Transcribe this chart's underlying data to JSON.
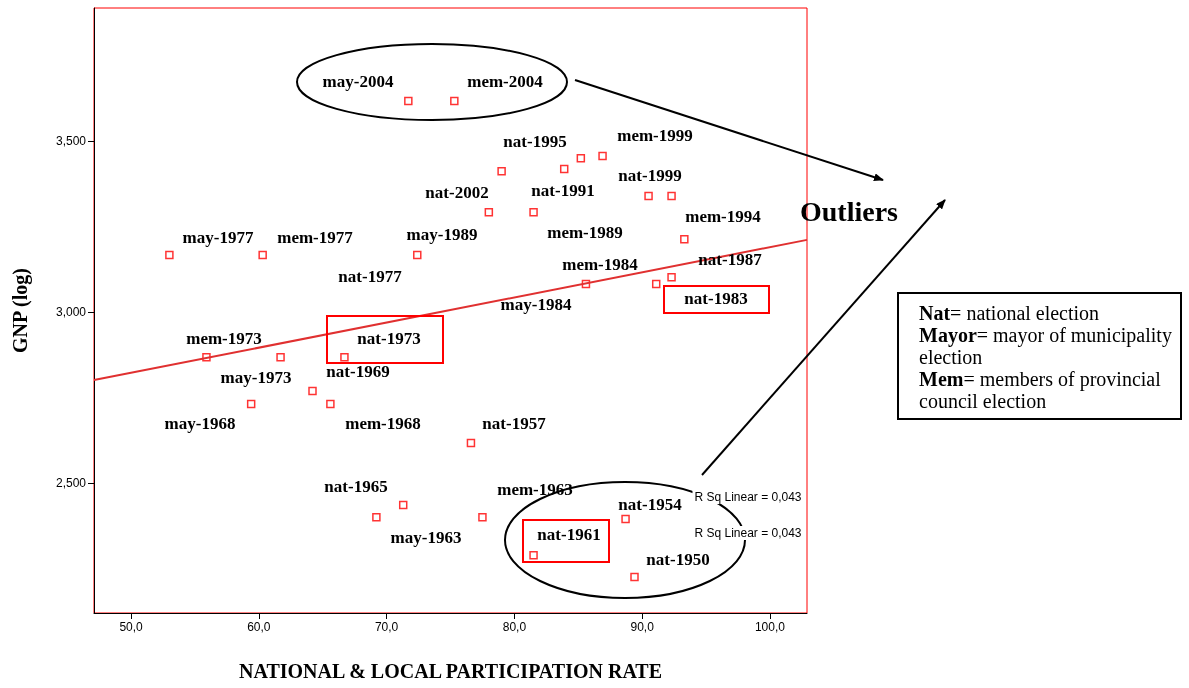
{
  "chart_data": {
    "type": "scatter",
    "xlabel": "NATIONAL & LOCAL PARTICIPATION RATE",
    "ylabel": "GNP (log)",
    "xlim": [
      47.1,
      102.9
    ],
    "ylim": [
      2.12,
      3.889
    ],
    "xticks": [
      {
        "value": 50,
        "label": "50,0"
      },
      {
        "value": 60,
        "label": "60,0"
      },
      {
        "value": 70,
        "label": "70,0"
      },
      {
        "value": 80,
        "label": "80,0"
      },
      {
        "value": 90,
        "label": "90,0"
      },
      {
        "value": 100,
        "label": "100,0"
      }
    ],
    "yticks": [
      {
        "value": 2.5,
        "label": "2,500"
      },
      {
        "value": 3.0,
        "label": "3,000"
      },
      {
        "value": 3.5,
        "label": "3,500"
      }
    ],
    "grid": false,
    "marker": "square",
    "series": [
      {
        "color": "#ff0000",
        "x": [
          71.7,
          75.3,
          53.0,
          60.3,
          72.4,
          79.0,
          83.9,
          85.2,
          86.9,
          78.0,
          81.5,
          90.5,
          92.3,
          93.3,
          92.3,
          91.1,
          85.6,
          55.9,
          61.7,
          66.7,
          64.2,
          59.4,
          65.6,
          71.3,
          69.2,
          76.6,
          77.5,
          88.7,
          81.5,
          89.4
        ],
        "values": [
          3.617,
          3.617,
          3.167,
          3.167,
          3.167,
          3.412,
          3.418,
          3.45,
          3.456,
          3.292,
          3.292,
          3.339,
          3.339,
          3.213,
          3.102,
          3.082,
          3.082,
          2.868,
          2.868,
          2.868,
          2.769,
          2.731,
          2.731,
          2.436,
          2.4,
          2.617,
          2.4,
          2.395,
          2.289,
          2.225
        ]
      },
      {
        "type": "line",
        "color": "#e03030",
        "marker": "none",
        "x": [
          47.1,
          102.9
        ],
        "values": [
          2.801,
          3.211
        ]
      }
    ],
    "annotations": [
      "may-2004",
      "mem-2004",
      "nat-1995",
      "mem-1999",
      "nat-2002",
      "nat-1991",
      "nat-1999",
      "may-1977",
      "mem-1977",
      "may-1989",
      "mem-1989",
      "mem-1994",
      "nat-1977",
      "mem-1984",
      "nat-1987",
      "nat-1983",
      "may-1984",
      "mem-1973",
      "nat-1973",
      "may-1973",
      "nat-1969",
      "may-1968",
      "mem-1968",
      "nat-1957",
      "nat-1965",
      "mem-1963",
      "nat-1954",
      "may-1963",
      "nat-1961",
      "nat-1950",
      "R Sq Linear = 0,043",
      "R Sq Linear = 0,043",
      "Outliers",
      "Nat= national election",
      "Mayor= mayor of municipality election",
      "Mem= members of provincial council election"
    ]
  }
}
